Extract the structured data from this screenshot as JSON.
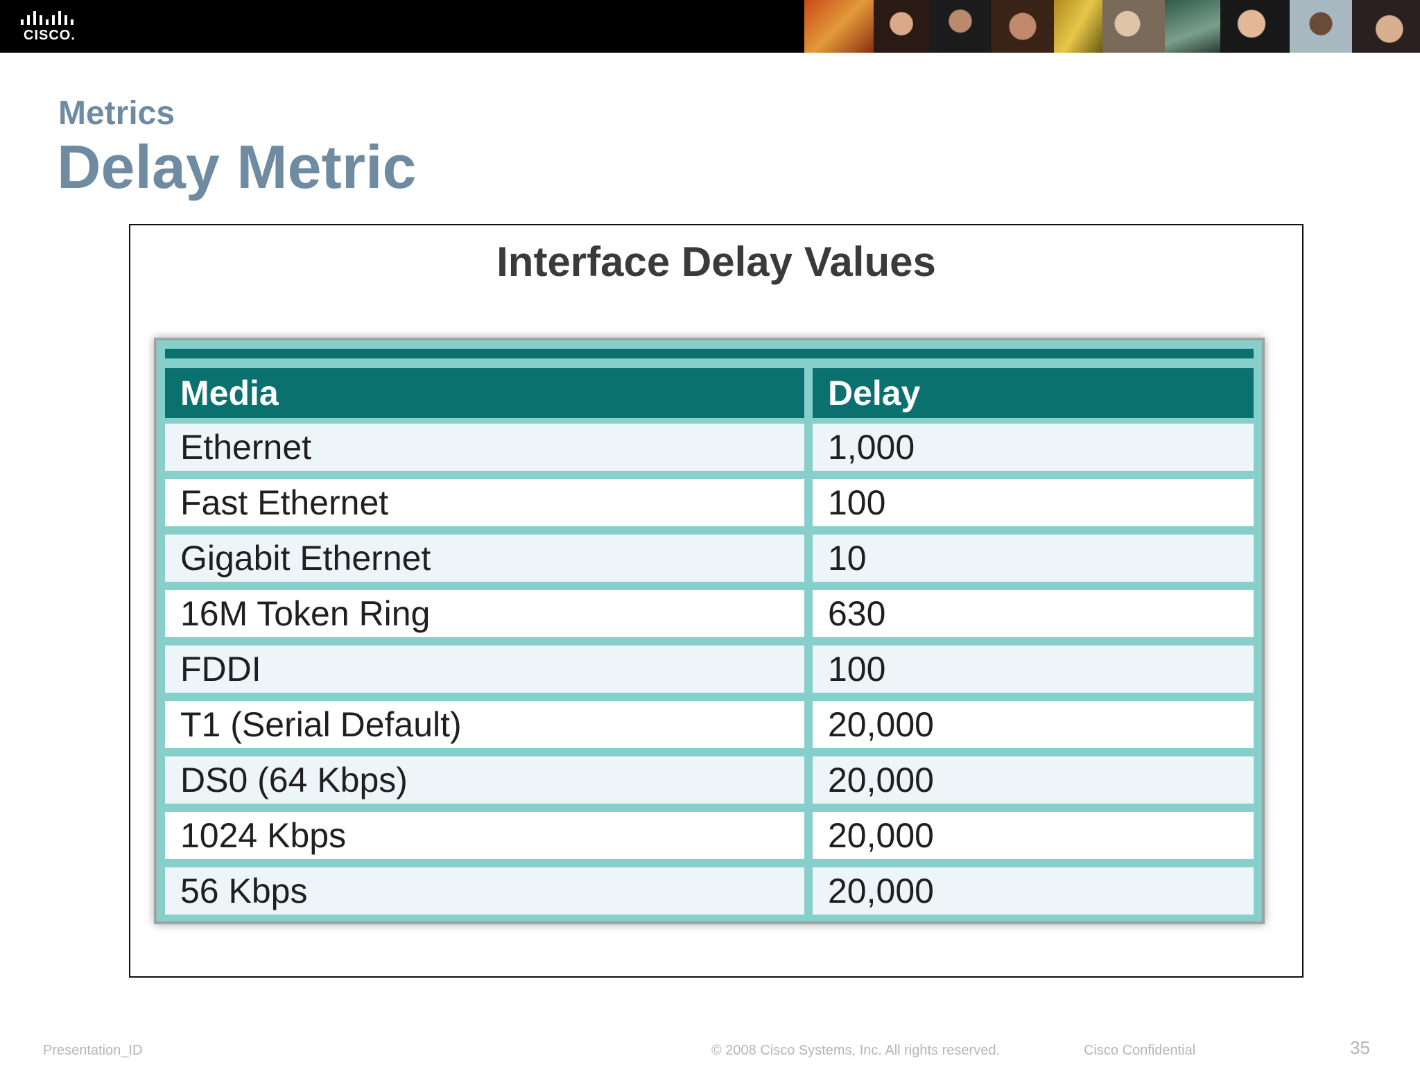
{
  "header": {
    "logo_text": "CISCO.",
    "logo_icon": "cisco-bars-icon",
    "photo_strip": [
      "orange",
      "portrait",
      "portrait",
      "portrait",
      "yellow",
      "portrait",
      "teal",
      "portrait",
      "portrait",
      "portrait"
    ]
  },
  "slide": {
    "subtitle": "Metrics",
    "title": "Delay Metric"
  },
  "figure": {
    "title": "Interface Delay Values",
    "columns": [
      "Media",
      "Delay"
    ],
    "rows": [
      [
        "Ethernet",
        "1,000"
      ],
      [
        "Fast Ethernet",
        "100"
      ],
      [
        "Gigabit Ethernet",
        "10"
      ],
      [
        "16M Token Ring",
        "630"
      ],
      [
        "FDDI",
        "100"
      ],
      [
        "T1 (Serial Default)",
        "20,000"
      ],
      [
        "DS0 (64 Kbps)",
        "20,000"
      ],
      [
        "1024 Kbps",
        "20,000"
      ],
      [
        "56 Kbps",
        "20,000"
      ]
    ],
    "colors": {
      "header_bg": "#0b716e",
      "grid": "#86cfcb",
      "row_alt": "#eef5f8"
    }
  },
  "footer": {
    "left": "Presentation_ID",
    "copyright": "© 2008 Cisco Systems, Inc. All rights reserved.",
    "confidential": "Cisco Confidential",
    "page_number": "35"
  }
}
